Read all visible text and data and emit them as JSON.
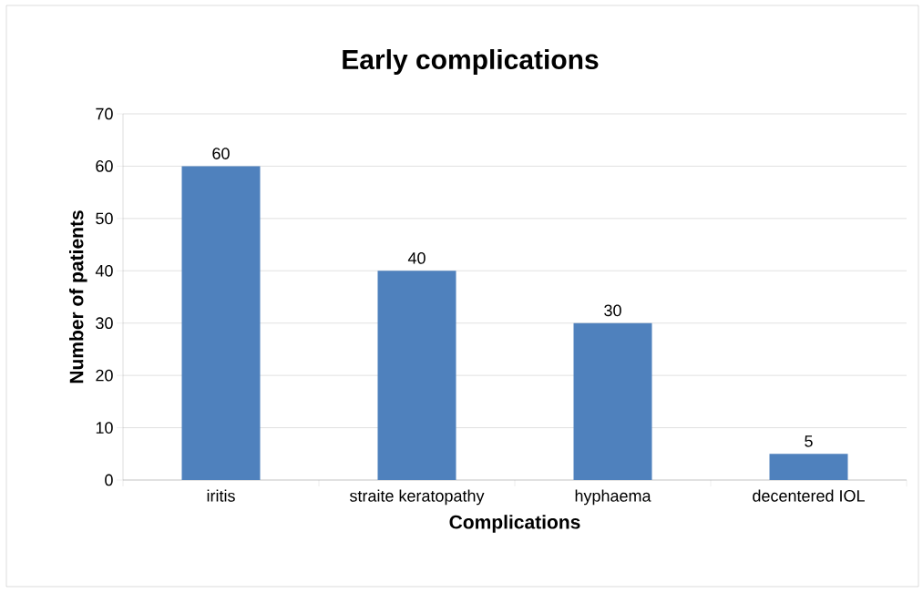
{
  "chart_data": {
    "type": "bar",
    "title": "Early complications",
    "xlabel": "Complications",
    "ylabel": "Number of patients",
    "categories": [
      "iritis",
      "straite keratopathy",
      "hyphaema",
      "decentered IOL"
    ],
    "values": [
      60,
      40,
      30,
      5
    ],
    "color": "#4f81bd",
    "ylim": [
      0,
      70
    ],
    "yticks": [
      0,
      10,
      20,
      30,
      40,
      50,
      60,
      70
    ],
    "grid": "y",
    "data_labels": true
  }
}
